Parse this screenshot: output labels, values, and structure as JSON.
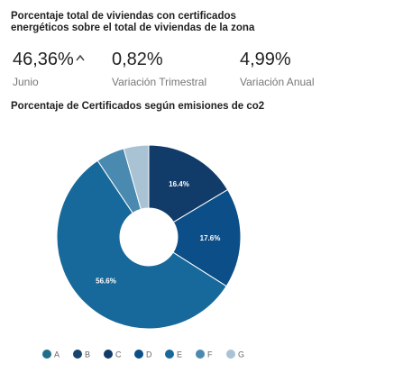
{
  "header": {
    "title": "Porcentaje total de viviendas con certificados energéticos sobre el total de viviendas de la zona"
  },
  "kpis": [
    {
      "value": "46,36%",
      "label": "Junio"
    },
    {
      "value": "0,82%",
      "label": "Variación Trimestral"
    },
    {
      "value": "4,99%",
      "label": "Variación Anual"
    }
  ],
  "chart_data": {
    "type": "pie",
    "title": "Porcentaje de Certificados según emisiones de co2",
    "categories": [
      "A",
      "B",
      "C",
      "D",
      "E",
      "F",
      "G"
    ],
    "values": [
      0,
      0,
      16.4,
      17.6,
      56.6,
      5.0,
      4.4
    ],
    "value_labels": [
      null,
      null,
      "16.4%",
      "17.6%",
      "56.6%",
      null,
      null
    ],
    "colors": [
      "#1f6f8b",
      "#17456f",
      "#113b69",
      "#0b4e88",
      "#18699b",
      "#4a89b0",
      "#a9c3d5"
    ]
  }
}
